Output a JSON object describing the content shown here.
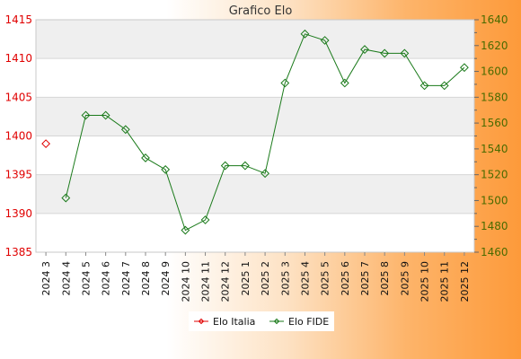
{
  "chart_data": {
    "type": "line",
    "title": "Grafico Elo",
    "categories": [
      "2024 3",
      "2024 4",
      "2024 5",
      "2024 6",
      "2024 7",
      "2024 8",
      "2024 9",
      "2024 10",
      "2024 11",
      "2024 12",
      "2025 1",
      "2025 2",
      "2025 3",
      "2025 4",
      "2025 5",
      "2025 6",
      "2025 7",
      "2025 8",
      "2025 9",
      "2025 10",
      "2025 11",
      "2025 12"
    ],
    "y_left": {
      "ylim": [
        1385,
        1415
      ],
      "ticks": [
        1385,
        1390,
        1395,
        1400,
        1405,
        1410,
        1415
      ]
    },
    "y_right": {
      "ylim": [
        1460,
        1640
      ],
      "ticks": [
        1460,
        1480,
        1500,
        1520,
        1540,
        1560,
        1580,
        1600,
        1620,
        1640
      ]
    },
    "series": [
      {
        "name": "Elo Italia",
        "axis": "left",
        "color": "#e00000",
        "values": [
          1399,
          null,
          null,
          null,
          null,
          null,
          null,
          null,
          null,
          null,
          null,
          null,
          null,
          null,
          null,
          null,
          null,
          null,
          null,
          null,
          null,
          null
        ]
      },
      {
        "name": "Elo FIDE",
        "axis": "right",
        "color": "#1a7a1a",
        "values": [
          null,
          1502,
          1566,
          1566,
          1555,
          1533,
          1524,
          1477,
          1485,
          1527,
          1527,
          1521,
          1591,
          1629,
          1624,
          1591,
          1617,
          1614,
          1614,
          1589,
          1589,
          1603
        ]
      }
    ],
    "legend": "bottom",
    "grid": true,
    "colors": {
      "band": "#efefef",
      "grid": "#d6d6d6"
    }
  }
}
